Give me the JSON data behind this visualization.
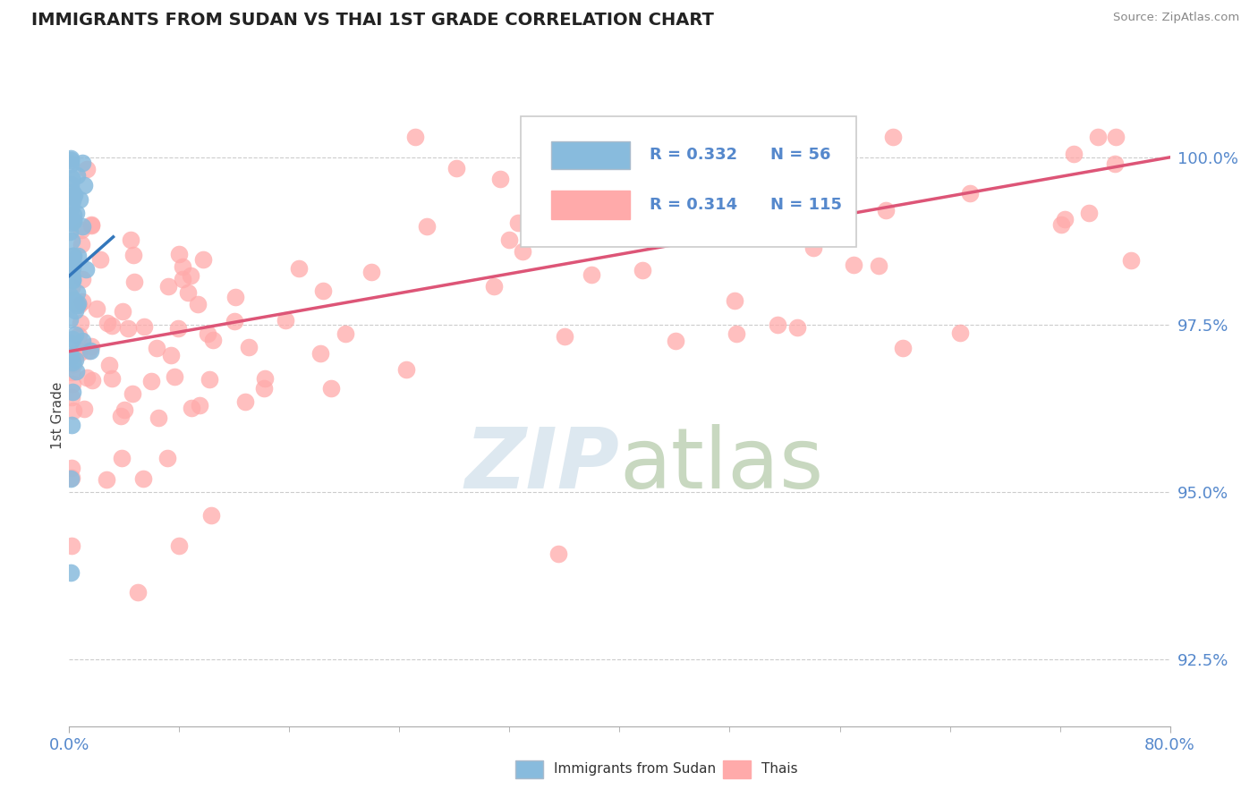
{
  "title": "IMMIGRANTS FROM SUDAN VS THAI 1ST GRADE CORRELATION CHART",
  "source": "Source: ZipAtlas.com",
  "ylabel": "1st Grade",
  "legend_label_blue": "Immigrants from Sudan",
  "legend_label_pink": "Thais",
  "x_min": 0.0,
  "x_max": 80.0,
  "y_min": 91.5,
  "y_max": 100.8,
  "yticks": [
    92.5,
    95.0,
    97.5,
    100.0
  ],
  "ytick_labels": [
    "92.5%",
    "95.0%",
    "97.5%",
    "100.0%"
  ],
  "xtick_vals": [
    0.0,
    80.0
  ],
  "xtick_labels": [
    "0.0%",
    "80.0%"
  ],
  "blue_R": 0.332,
  "blue_N": 56,
  "pink_R": 0.314,
  "pink_N": 115,
  "blue_color": "#88bbdd",
  "pink_color": "#ffaaaa",
  "blue_edge_color": "#5599cc",
  "pink_edge_color": "#ff8888",
  "blue_line_color": "#3377bb",
  "pink_line_color": "#dd5577",
  "watermark_zip": "ZIP",
  "watermark_atlas": "atlas",
  "watermark_color": "#dde8f0",
  "grid_color": "#cccccc",
  "ytick_color": "#5588cc",
  "xtick_color": "#5588cc"
}
